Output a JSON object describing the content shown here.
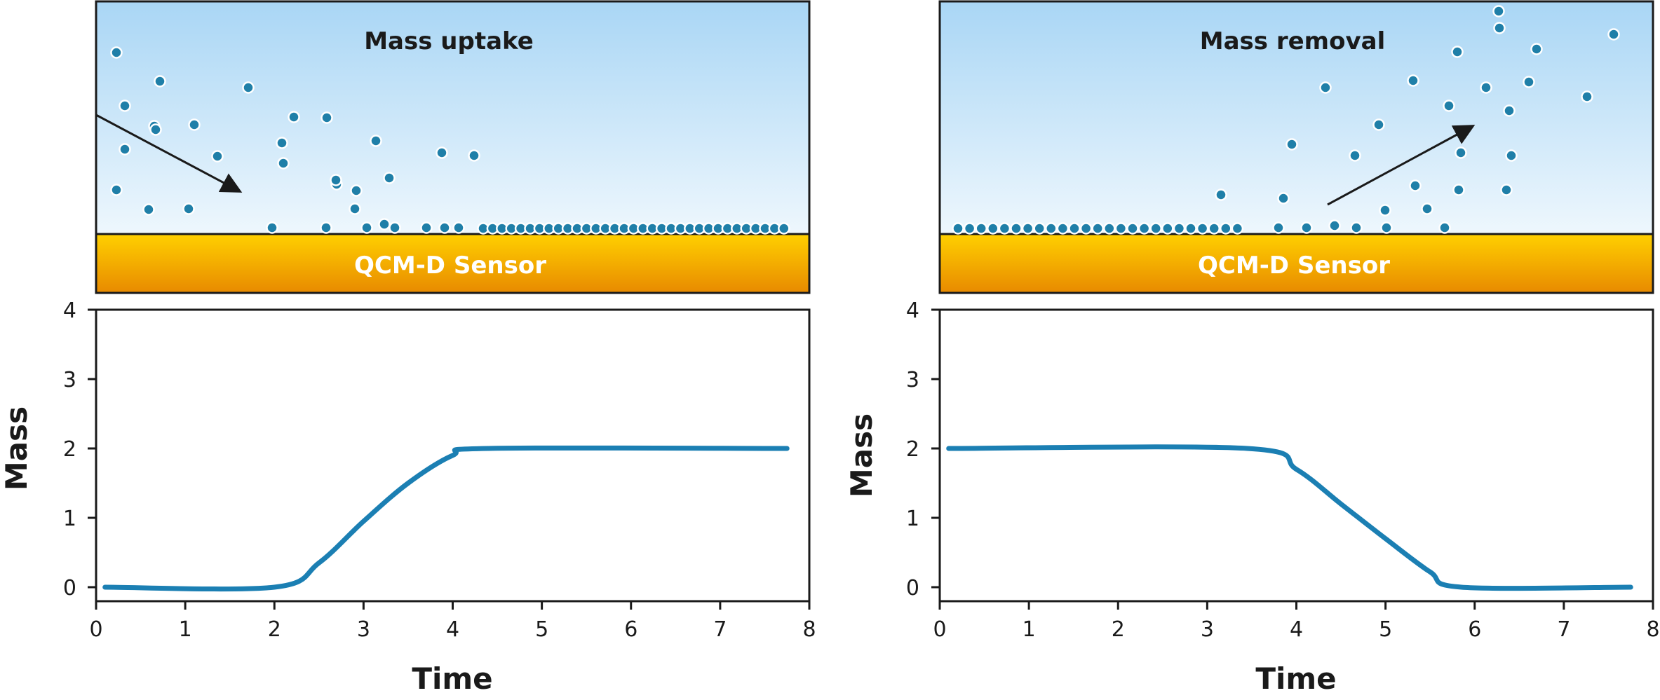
{
  "colors": {
    "sky_top": "#a9d6f5",
    "sky_bottom": "#eef7fd",
    "sensor_top": "#ffd000",
    "sensor_bottom": "#e88a00",
    "particle": "#1f7fa8",
    "curve": "#1b7fb3",
    "frame": "#1a1a1a"
  },
  "diagrams": [
    {
      "title": "Mass uptake",
      "sensor_label": "QCM-D Sensor",
      "arrow_direction": "down-right"
    },
    {
      "title": "Mass removal",
      "sensor_label": "QCM-D Sensor",
      "arrow_direction": "up-right"
    }
  ],
  "chart_data": [
    {
      "type": "line",
      "xlabel": "Time",
      "ylabel": "Mass",
      "xlim": [
        0,
        8
      ],
      "ylim": [
        0,
        4
      ],
      "xticks": [
        "0",
        "1",
        "2",
        "3",
        "4",
        "5",
        "6",
        "7",
        "8"
      ],
      "yticks": [
        "0",
        "1",
        "2",
        "3",
        "4"
      ],
      "grid": false,
      "series": [
        {
          "x": [
            0.1,
            2.0,
            2.5,
            3.0,
            3.5,
            4.0,
            4.4,
            7.75
          ],
          "y": [
            0,
            0,
            0.35,
            0.95,
            1.5,
            1.9,
            2.0,
            2.0
          ]
        }
      ]
    },
    {
      "type": "line",
      "xlabel": "Time",
      "ylabel": "Mass",
      "xlim": [
        0,
        8
      ],
      "ylim": [
        0,
        4
      ],
      "xticks": [
        "0",
        "1",
        "2",
        "3",
        "4",
        "5",
        "6",
        "7",
        "8"
      ],
      "yticks": [
        "0",
        "1",
        "2",
        "3",
        "4"
      ],
      "grid": false,
      "series": [
        {
          "x": [
            0.1,
            3.45,
            4.0,
            4.5,
            5.0,
            5.5,
            5.85,
            7.75
          ],
          "y": [
            2.0,
            2.0,
            1.7,
            1.2,
            0.7,
            0.22,
            0,
            0
          ]
        }
      ]
    }
  ]
}
